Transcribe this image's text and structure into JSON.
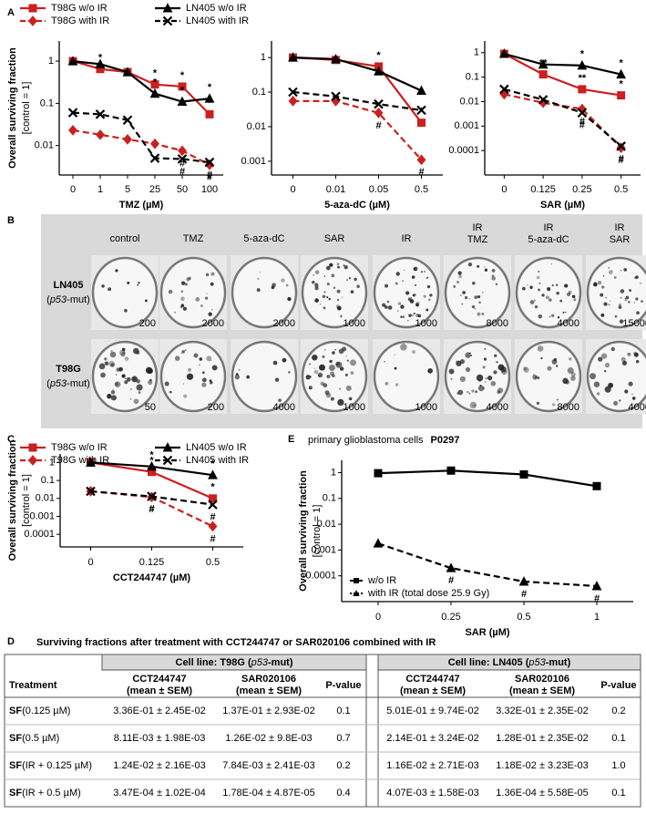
{
  "panel_labels": [
    "A",
    "B",
    "C",
    "D",
    "E"
  ],
  "chart_data": [
    {
      "type": "line",
      "xlabel": "TMZ (µM)",
      "ylabel": "Overall surviving fraction",
      "ylabel_sub": "[control = 1]",
      "log_y": true,
      "ylim": [
        0.002,
        3
      ],
      "yticks": [
        0.01,
        0.1,
        1
      ],
      "categories": [
        "0",
        "1",
        "5",
        "25",
        "50",
        "100"
      ],
      "legend": "top",
      "series": [
        {
          "name": "T98G w/o IR",
          "color": "#cc1f1f",
          "marker": "square",
          "dash": false,
          "values": [
            1,
            0.65,
            0.55,
            0.28,
            0.25,
            0.055
          ],
          "labels": [
            null,
            "*",
            null,
            "*",
            "*",
            "*"
          ]
        },
        {
          "name": "T98G with IR",
          "color": "#cc1f1f",
          "marker": "diamond",
          "dash": true,
          "values": [
            0.023,
            0.018,
            0.014,
            0.011,
            0.0075,
            0.0035
          ],
          "labels": [
            null,
            null,
            null,
            null,
            "#",
            "#"
          ]
        },
        {
          "name": "LN405 w/o IR",
          "color": "#000000",
          "marker": "triangle",
          "dash": false,
          "values": [
            1,
            0.85,
            0.55,
            0.17,
            0.11,
            0.13
          ],
          "labels": [
            null,
            null,
            null,
            "*",
            "*",
            "*"
          ]
        },
        {
          "name": "LN405 with IR",
          "color": "#000000",
          "marker": "x",
          "dash": true,
          "values": [
            0.06,
            0.055,
            0.04,
            0.005,
            0.0048,
            0.004
          ],
          "labels": [
            null,
            null,
            null,
            null,
            "#",
            "#"
          ]
        }
      ]
    },
    {
      "type": "line",
      "xlabel": "5-aza-dC (µM)",
      "log_y": true,
      "ylim": [
        0.0004,
        3
      ],
      "yticks": [
        0.001,
        0.01,
        0.1,
        1
      ],
      "categories": [
        "0",
        "0.01",
        "0.05",
        "0.5"
      ],
      "series": [
        {
          "color": "#cc1f1f",
          "marker": "square",
          "dash": false,
          "values": [
            1,
            0.85,
            0.55,
            0.013
          ],
          "labels": [
            null,
            null,
            "*",
            "*"
          ]
        },
        {
          "color": "#cc1f1f",
          "marker": "diamond",
          "dash": true,
          "values": [
            0.055,
            0.055,
            0.025,
            0.0011
          ],
          "labels": [
            null,
            null,
            "#",
            "#"
          ]
        },
        {
          "color": "#000000",
          "marker": "triangle",
          "dash": false,
          "values": [
            1,
            0.9,
            0.4,
            0.11
          ],
          "labels": [
            null,
            null,
            null,
            null
          ]
        },
        {
          "color": "#000000",
          "marker": "x",
          "dash": true,
          "values": [
            0.1,
            0.075,
            0.045,
            0.03
          ],
          "labels": [
            null,
            null,
            null,
            null
          ]
        }
      ]
    },
    {
      "type": "line",
      "xlabel": "SAR (µM)",
      "log_y": true,
      "ylim": [
        1e-05,
        3
      ],
      "yticks": [
        0.0001,
        0.001,
        0.01,
        0.1,
        1
      ],
      "categories": [
        "0",
        "0.125",
        "0.25",
        "0.5"
      ],
      "series": [
        {
          "color": "#cc1f1f",
          "marker": "square",
          "dash": false,
          "values": [
            0.9,
            0.13,
            0.032,
            0.018
          ],
          "labels": [
            null,
            "**",
            "**",
            "*"
          ]
        },
        {
          "color": "#cc1f1f",
          "marker": "diamond",
          "dash": true,
          "values": [
            0.02,
            0.009,
            0.005,
            0.00013
          ],
          "labels": [
            null,
            null,
            "#",
            "#"
          ]
        },
        {
          "color": "#000000",
          "marker": "triangle",
          "dash": false,
          "values": [
            0.9,
            0.33,
            0.3,
            0.13
          ],
          "labels": [
            null,
            null,
            "*",
            "*"
          ]
        },
        {
          "color": "#000000",
          "marker": "x",
          "dash": true,
          "values": [
            0.032,
            0.012,
            0.0035,
            0.00015
          ],
          "labels": [
            null,
            null,
            "#",
            "#"
          ]
        }
      ]
    },
    {
      "type": "line",
      "xlabel": "CCT244747 (µM)",
      "ylabel": "Overall surviving fraction",
      "ylabel_sub": "[control = 1]",
      "log_y": true,
      "ylim": [
        2e-05,
        3
      ],
      "yticks": [
        0.0001,
        0.001,
        0.01,
        0.1,
        1
      ],
      "categories": [
        "0",
        "0.125",
        "0.5"
      ],
      "legend": "top",
      "series": [
        {
          "name": "T98G w/o IR",
          "color": "#cc1f1f",
          "marker": "square",
          "dash": false,
          "values": [
            1,
            0.3,
            0.01
          ],
          "labels": [
            null,
            "*",
            "*"
          ]
        },
        {
          "name": "T98G with IR",
          "color": "#cc1f1f",
          "marker": "diamond",
          "dash": true,
          "values": [
            0.025,
            0.012,
            0.00028
          ],
          "labels": [
            null,
            "#",
            "#"
          ]
        },
        {
          "name": "LN405 w/o IR",
          "color": "#000000",
          "marker": "triangle",
          "dash": false,
          "values": [
            1,
            0.6,
            0.2
          ],
          "labels": [
            null,
            "*",
            "*"
          ]
        },
        {
          "name": "LN405 with IR",
          "color": "#000000",
          "marker": "x",
          "dash": true,
          "values": [
            0.025,
            0.013,
            0.0045
          ],
          "labels": [
            null,
            "#",
            "#"
          ]
        }
      ]
    },
    {
      "type": "line",
      "title": "primary glioblastoma cells",
      "title_sample": "P0297",
      "xlabel": "SAR (µM)",
      "ylabel": "Overall surviving fraction",
      "ylabel_sub": "[control = 1]",
      "log_y": true,
      "ylim": [
        1e-05,
        3
      ],
      "yticks": [
        0.0001,
        0.001,
        0.01,
        0.1,
        1
      ],
      "categories": [
        "0",
        "0.25",
        "0.5",
        "1"
      ],
      "legend": "lower left",
      "series": [
        {
          "name": "w/o IR",
          "color": "#000000",
          "marker": "square",
          "dash": false,
          "values": [
            0.95,
            1.2,
            0.85,
            0.3
          ],
          "labels": [
            null,
            null,
            null,
            null
          ]
        },
        {
          "name": "with IR (total dose 25.9 Gy)",
          "color": "#000000",
          "marker": "triangle",
          "dash": true,
          "values": [
            0.0018,
            0.0002,
            6e-05,
            4e-05
          ],
          "labels": [
            null,
            "#",
            "#",
            "#"
          ]
        }
      ]
    }
  ],
  "colony_assay": {
    "columns": [
      [
        "control"
      ],
      [
        "TMZ"
      ],
      [
        "5-aza-dC"
      ],
      [
        "SAR"
      ],
      [
        "IR"
      ],
      [
        "IR",
        "TMZ"
      ],
      [
        "IR",
        "5-aza-dC"
      ],
      [
        "IR",
        "SAR"
      ]
    ],
    "rows": [
      {
        "name": "LN405",
        "note": [
          "(",
          "p53",
          "-mut)"
        ],
        "cells": [
          200,
          2000,
          2000,
          1000,
          1000,
          8000,
          4000,
          15000
        ]
      },
      {
        "name": "T98G",
        "note": [
          "(",
          "p53",
          "-mut)"
        ],
        "cells": [
          50,
          200,
          4000,
          1000,
          1000,
          4000,
          8000,
          4000
        ]
      }
    ]
  },
  "table": {
    "title": "Surviving  fractions after treatment with CCT244747 or SAR020106 combined with IR",
    "groups": [
      [
        "Cell line: T98G (",
        "p53",
        "-mut)"
      ],
      [
        "Cell line: LN405 (",
        "p53",
        "-mut)"
      ]
    ],
    "header": [
      [
        "Treatment"
      ],
      [
        "CCT244747",
        "(mean  ±  SEM)"
      ],
      [
        "SAR020106",
        "(mean  ±  SEM)"
      ],
      [
        "P-value"
      ],
      [
        "CCT244747",
        "(mean  ±  SEM)"
      ],
      [
        "SAR020106",
        "(mean  ±  SEM)"
      ],
      [
        "P-value"
      ]
    ],
    "rows": [
      {
        "label": [
          "SF",
          "(0.125 µM)"
        ],
        "cells": [
          "3.36E-01 ± 2.45E-02",
          "1.37E-01 ± 2.93E-02",
          "0.1",
          "5.01E-01 ± 9.74E-02",
          "3.32E-01 ± 2.35E-02",
          "0.2"
        ]
      },
      {
        "label": [
          "SF",
          "(0.5 µM)"
        ],
        "cells": [
          "8.11E-03 ± 1.98E-03",
          "1.26E-02 ± 9.8E-03",
          "0.7",
          "2.14E-01 ± 3.24E-02",
          "1.28E-01 ± 2.35E-02",
          "0.1"
        ]
      },
      {
        "label": [
          "SF",
          "(IR + 0.125 µM)"
        ],
        "cells": [
          "1.24E-02 ± 2.16E-03",
          "7.84E-03 ± 2.41E-03",
          "0.2",
          "1.16E-02 ± 2.71E-03",
          "1.18E-02 ± 3.23E-03",
          "1.0"
        ]
      },
      {
        "label": [
          "SF",
          "(IR + 0.5 µM)"
        ],
        "cells": [
          "3.47E-04 ± 1.02E-04",
          "1.78E-04 ± 4.87E-05",
          "0.4",
          "4.07E-03 ± 1.58E-03",
          "1.36E-04 ± 5.58E-05",
          "0.1"
        ]
      }
    ]
  }
}
